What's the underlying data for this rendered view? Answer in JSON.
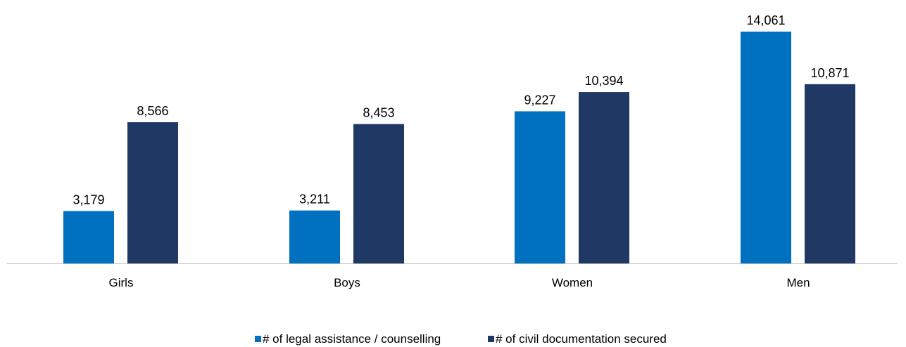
{
  "chart_data": {
    "type": "bar",
    "categories": [
      "Girls",
      "Boys",
      "Women",
      "Men"
    ],
    "series": [
      {
        "name": "# of legal assistance / counselling",
        "values": [
          3179,
          3211,
          9227,
          14061
        ],
        "labels": [
          "3,179",
          "3,211",
          "9,227",
          "14,061"
        ],
        "color": "#0070c0"
      },
      {
        "name": "# of civil documentation secured",
        "values": [
          8566,
          8453,
          10394,
          10871
        ],
        "labels": [
          "8,566",
          "8,453",
          "10,394",
          "10,871"
        ],
        "color": "#203864"
      }
    ],
    "ylim": [
      0,
      14500
    ],
    "grid": false,
    "y_axis_visible": false,
    "legend_position": "bottom",
    "axis_color": "#bfbfbf"
  }
}
